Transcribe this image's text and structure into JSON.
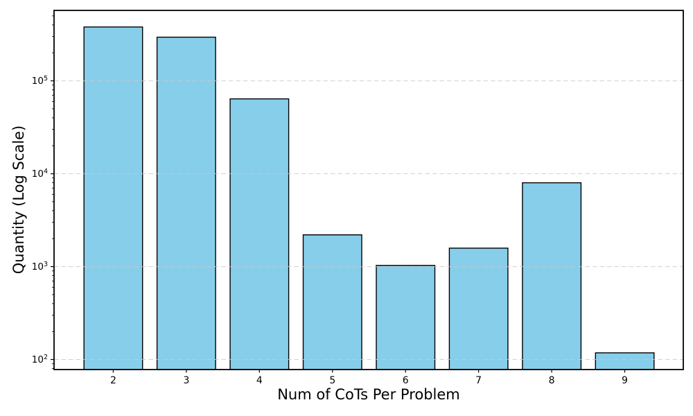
{
  "figure": {
    "background": "#ffffff"
  },
  "chart_data": {
    "type": "bar",
    "title": "",
    "xlabel": "Num of CoTs Per Problem",
    "ylabel": "Quantity (Log Scale)",
    "categories": [
      "2",
      "3",
      "4",
      "5",
      "6",
      "7",
      "8",
      "9"
    ],
    "values": [
      380000,
      295000,
      64000,
      2200,
      1030,
      1580,
      8000,
      118
    ],
    "yscale": "log",
    "ylim": [
      78,
      573000
    ],
    "ytick_exponents": [
      2,
      3,
      4,
      5
    ],
    "ytick_labels": [
      "10²",
      "10³",
      "10⁴",
      "10⁵"
    ],
    "legend": "none",
    "grid": "y-major dashed",
    "colors": {
      "bar_fill": "#87CEEB",
      "bar_edge": "#000000",
      "grid": "#c9c9c9",
      "spine": "#000000",
      "tick": "#000000",
      "text": "#000000"
    }
  }
}
